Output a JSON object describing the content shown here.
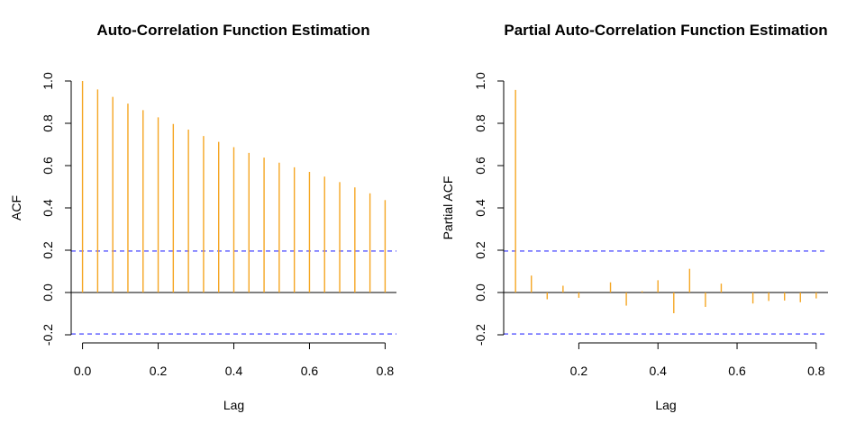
{
  "colors": {
    "bar": "#F5A623",
    "ci": "#3333FF",
    "axis": "#000000"
  },
  "chart_data": [
    {
      "type": "bar",
      "title": "Auto-Correlation Function Estimation",
      "xlabel": "Lag",
      "ylabel": "ACF",
      "xlim": [
        -0.03,
        0.83
      ],
      "ylim": [
        -0.2,
        1.0
      ],
      "xticks": [
        0.0,
        0.2,
        0.4,
        0.6,
        0.8
      ],
      "xtick_labels": [
        "0.0",
        "0.2",
        "0.4",
        "0.6",
        "0.8"
      ],
      "yticks": [
        -0.2,
        0.0,
        0.2,
        0.4,
        0.6,
        0.8,
        1.0
      ],
      "ytick_labels": [
        "-0.2",
        "0.0",
        "0.2",
        "0.4",
        "0.6",
        "0.8",
        "1.0"
      ],
      "ci": [
        0.196,
        -0.196
      ],
      "lags": [
        0.0,
        0.04,
        0.08,
        0.12,
        0.16,
        0.2,
        0.24,
        0.28,
        0.32,
        0.36,
        0.4,
        0.44,
        0.48,
        0.52,
        0.56,
        0.6,
        0.64,
        0.68,
        0.72,
        0.76,
        0.8
      ],
      "values": [
        1.0,
        0.96,
        0.925,
        0.893,
        0.862,
        0.828,
        0.797,
        0.77,
        0.74,
        0.712,
        0.687,
        0.66,
        0.638,
        0.614,
        0.592,
        0.57,
        0.548,
        0.522,
        0.497,
        0.469,
        0.437
      ]
    },
    {
      "type": "bar",
      "title": "Partial Auto-Correlation Function Estimation",
      "xlabel": "Lag",
      "ylabel": "Partial ACF",
      "xlim": [
        0.01,
        0.83
      ],
      "ylim": [
        -0.2,
        1.0
      ],
      "xticks": [
        0.2,
        0.4,
        0.6,
        0.8
      ],
      "xtick_labels": [
        "0.2",
        "0.4",
        "0.6",
        "0.8"
      ],
      "yticks": [
        -0.2,
        0.0,
        0.2,
        0.4,
        0.6,
        0.8,
        1.0
      ],
      "ytick_labels": [
        "-0.2",
        "0.0",
        "0.2",
        "0.4",
        "0.6",
        "0.8",
        "1.0"
      ],
      "ci": [
        0.196,
        -0.196
      ],
      "lags": [
        0.04,
        0.08,
        0.12,
        0.16,
        0.2,
        0.24,
        0.28,
        0.32,
        0.36,
        0.4,
        0.44,
        0.48,
        0.52,
        0.56,
        0.6,
        0.64,
        0.68,
        0.72,
        0.76,
        0.8
      ],
      "values": [
        0.958,
        0.08,
        -0.032,
        0.032,
        -0.025,
        0.0,
        0.048,
        -0.062,
        0.006,
        0.058,
        -0.098,
        0.112,
        -0.068,
        0.042,
        0.0,
        -0.052,
        -0.04,
        -0.038,
        -0.046,
        -0.028
      ]
    }
  ]
}
